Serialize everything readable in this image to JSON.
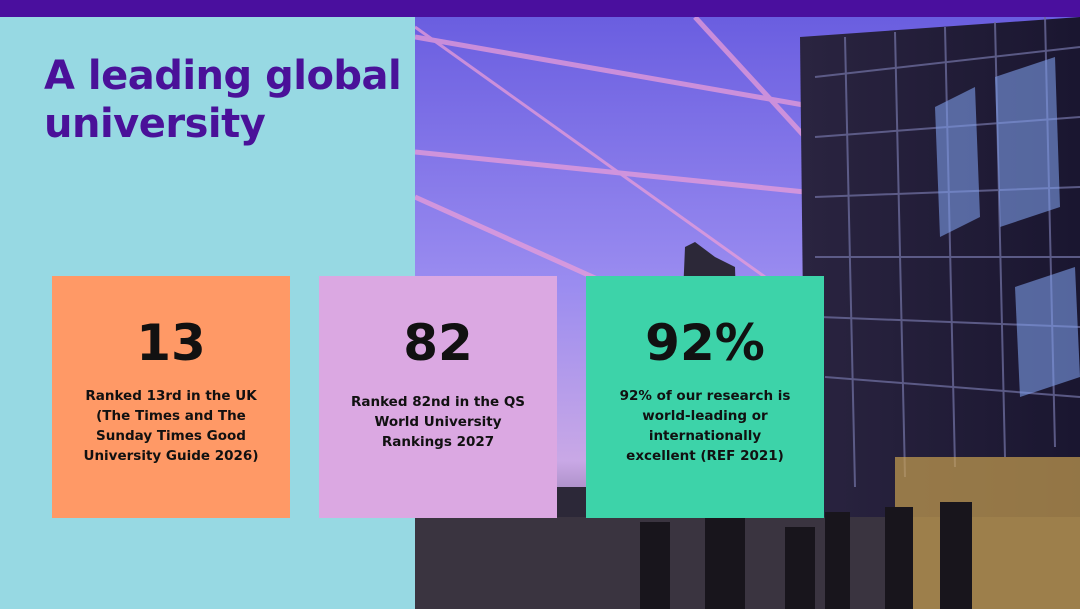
{
  "header": {
    "title_lines": [
      "A leading global",
      "university"
    ]
  },
  "stats": [
    {
      "figure": "13",
      "lines": [
        "Ranked 13rd in the UK",
        "(The Times and The",
        "Sunday Times Good",
        "University Guide 2026)"
      ]
    },
    {
      "figure": "82",
      "lines": [
        "Ranked 82nd in the QS",
        "World University",
        "Rankings 2027"
      ]
    },
    {
      "figure": "92%",
      "lines": [
        "92% of our research is",
        "world-leading or",
        "internationally",
        "excellent (REF 2021)"
      ]
    }
  ]
}
